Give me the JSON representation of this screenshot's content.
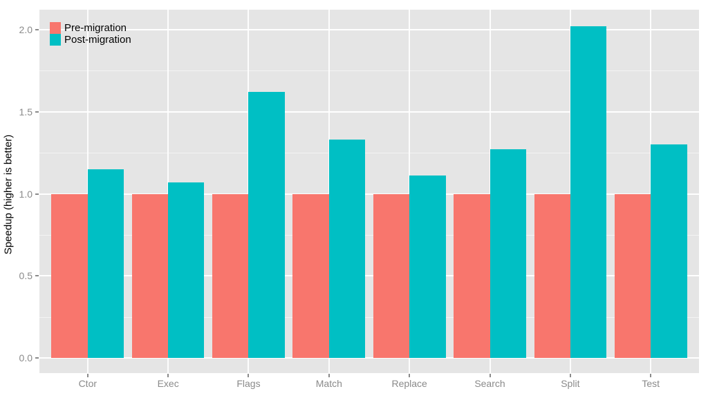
{
  "chart_data": {
    "type": "bar",
    "categories": [
      "Ctor",
      "Exec",
      "Flags",
      "Match",
      "Replace",
      "Search",
      "Split",
      "Test"
    ],
    "series": [
      {
        "name": "Pre-migration",
        "color": "#F8766D",
        "values": [
          1.0,
          1.0,
          1.0,
          1.0,
          1.0,
          1.0,
          1.0,
          1.0
        ]
      },
      {
        "name": "Post-migration",
        "color": "#00BFC4",
        "values": [
          1.15,
          1.07,
          1.62,
          1.33,
          1.11,
          1.27,
          2.02,
          1.3
        ]
      }
    ],
    "title": "",
    "xlabel": "",
    "ylabel": "Speedup (higher is better)",
    "ytick_labels": [
      "0.0",
      "0.5",
      "1.0",
      "1.5",
      "2.0"
    ],
    "ytick_values": [
      0,
      0.5,
      1,
      1.5,
      2
    ],
    "minor_tick_values": [
      0.25,
      0.75,
      1.25,
      1.75
    ],
    "ylim": [
      -0.09,
      2.12
    ],
    "grid": "on",
    "legend_position": "top-left-inside",
    "colors": {
      "panel_background": "#E5E5E5",
      "grid_major": "#FFFFFF",
      "grid_minor": "#F2F2F2",
      "tick_label": "#8A8A8A",
      "axis_title": "#000000",
      "legend_text": "#000000",
      "outer_background": "#FFFFFF"
    }
  }
}
